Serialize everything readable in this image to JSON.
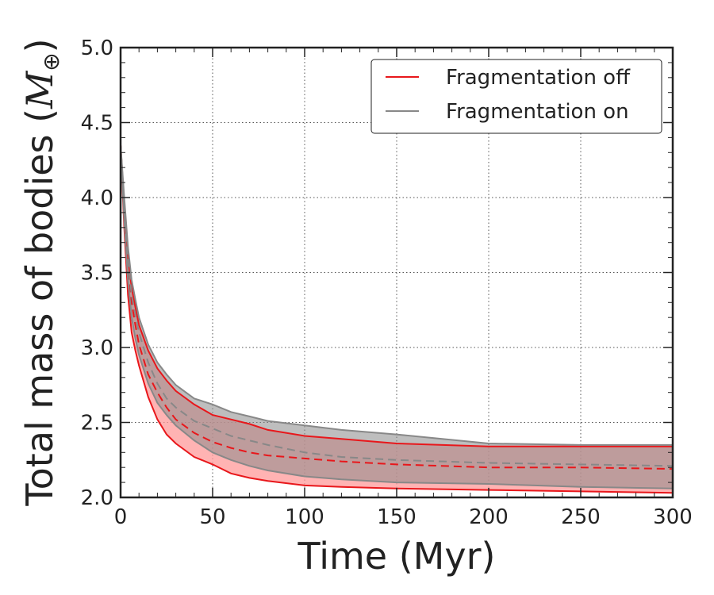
{
  "chart_data": {
    "type": "line",
    "xlabel": "Time (Myr)",
    "ylabel": "Total mass of bodies",
    "ylabel_unit_symbol": "M",
    "ylabel_unit_subscript": "⊕",
    "xlim": [
      0,
      300
    ],
    "ylim": [
      2.0,
      5.0
    ],
    "grid": true,
    "legend_position": "top-right",
    "x_ticks": [
      0,
      50,
      100,
      150,
      200,
      250,
      300
    ],
    "x_tick_labels": [
      "0",
      "50",
      "100",
      "150",
      "200",
      "250",
      "300"
    ],
    "y_ticks": [
      2.0,
      2.5,
      3.0,
      3.5,
      4.0,
      4.5,
      5.0
    ],
    "y_tick_labels": [
      "2.0",
      "2.5",
      "3.0",
      "3.5",
      "4.0",
      "4.5",
      "5.0"
    ],
    "series": [
      {
        "name": "Fragmentation off",
        "color": "#e8171b",
        "fill_color": "#ff9a9a",
        "x": [
          0,
          2,
          4,
          6,
          8,
          10,
          15,
          20,
          25,
          30,
          40,
          50,
          60,
          70,
          80,
          100,
          120,
          150,
          200,
          250,
          300
        ],
        "median": [
          4.35,
          3.9,
          3.5,
          3.3,
          3.15,
          3.02,
          2.82,
          2.7,
          2.6,
          2.52,
          2.43,
          2.37,
          2.33,
          2.3,
          2.28,
          2.26,
          2.24,
          2.22,
          2.2,
          2.2,
          2.19
        ],
        "upper": [
          4.35,
          3.95,
          3.6,
          3.4,
          3.27,
          3.15,
          2.98,
          2.86,
          2.78,
          2.71,
          2.62,
          2.55,
          2.52,
          2.49,
          2.45,
          2.41,
          2.39,
          2.36,
          2.34,
          2.34,
          2.34
        ],
        "lower": [
          4.35,
          3.8,
          3.35,
          3.1,
          2.98,
          2.88,
          2.67,
          2.52,
          2.42,
          2.36,
          2.27,
          2.22,
          2.16,
          2.13,
          2.11,
          2.08,
          2.07,
          2.06,
          2.05,
          2.04,
          2.03
        ]
      },
      {
        "name": "Fragmentation on",
        "color": "#888888",
        "fill_color": "#888888",
        "x": [
          0,
          2,
          4,
          6,
          8,
          10,
          15,
          20,
          25,
          30,
          40,
          50,
          60,
          70,
          80,
          100,
          120,
          150,
          200,
          250,
          300
        ],
        "median": [
          4.35,
          3.95,
          3.58,
          3.35,
          3.22,
          3.1,
          2.9,
          2.76,
          2.66,
          2.6,
          2.51,
          2.46,
          2.41,
          2.38,
          2.35,
          2.3,
          2.27,
          2.25,
          2.23,
          2.22,
          2.21
        ],
        "upper": [
          4.35,
          4.0,
          3.67,
          3.45,
          3.32,
          3.2,
          3.02,
          2.9,
          2.82,
          2.75,
          2.66,
          2.62,
          2.57,
          2.54,
          2.51,
          2.48,
          2.45,
          2.42,
          2.36,
          2.35,
          2.35
        ],
        "lower": [
          4.35,
          3.85,
          3.45,
          3.2,
          3.06,
          2.95,
          2.76,
          2.63,
          2.55,
          2.48,
          2.38,
          2.3,
          2.25,
          2.21,
          2.18,
          2.14,
          2.12,
          2.1,
          2.09,
          2.07,
          2.06
        ]
      }
    ]
  }
}
